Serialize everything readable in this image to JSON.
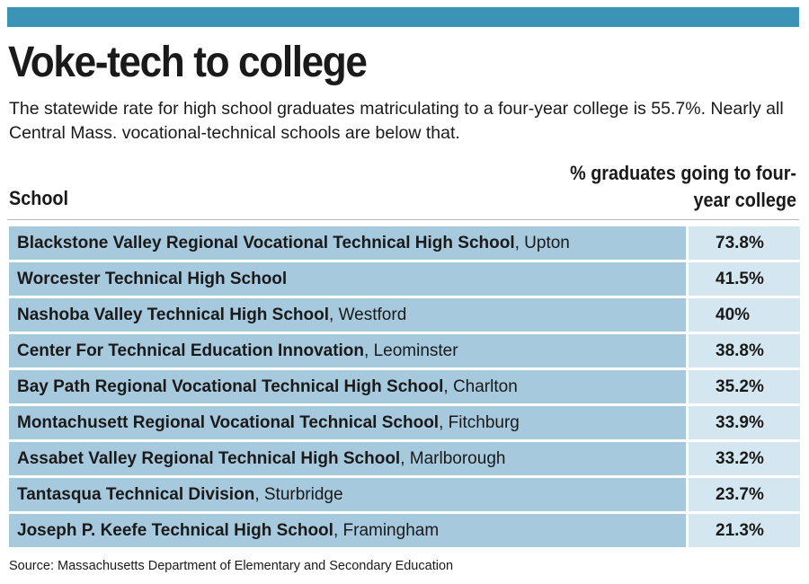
{
  "header": {
    "title": "Voke-tech to college",
    "subtitle": "The statewide rate for high school graduates matriculating to a four-year college is 55.7%. Nearly all Central Mass. vocational-technical schools are below that."
  },
  "colors": {
    "top_bar": "#3b93b6",
    "school_cell": "#a6c9dd",
    "value_cell": "#d4e6f0"
  },
  "chart_data": {
    "type": "table",
    "columns": [
      "School",
      "% graduates going to four-year college"
    ],
    "rows": [
      {
        "school": "Blackstone Valley Regional Vocational Technical High School",
        "town": ", Upton",
        "value": 73.8,
        "label": "73.8%"
      },
      {
        "school": "Worcester Technical High School",
        "town": "",
        "value": 41.5,
        "label": "41.5%"
      },
      {
        "school": "Nashoba Valley Technical High School",
        "town": ", Westford",
        "value": 40,
        "label": "40%"
      },
      {
        "school": "Center For Technical Education Innovation",
        "town": ", Leominster",
        "value": 38.8,
        "label": "38.8%"
      },
      {
        "school": "Bay Path Regional Vocational Technical High School",
        "town": ", Charlton",
        "value": 35.2,
        "label": "35.2%"
      },
      {
        "school": "Montachusett Regional Vocational Technical School",
        "town": ", Fitchburg",
        "value": 33.9,
        "label": "33.9%"
      },
      {
        "school": "Assabet Valley Regional Technical High School",
        "town": ", Marlborough",
        "value": 33.2,
        "label": "33.2%"
      },
      {
        "school": "Tantasqua Technical Division",
        "town": ", Sturbridge",
        "value": 23.7,
        "label": "23.7%"
      },
      {
        "school": "Joseph P. Keefe Technical High School",
        "town": ", Framingham",
        "value": 21.3,
        "label": "21.3%"
      }
    ]
  },
  "footer": {
    "source": "Source: Massachusetts Department of Elementary and Secondary Education"
  }
}
